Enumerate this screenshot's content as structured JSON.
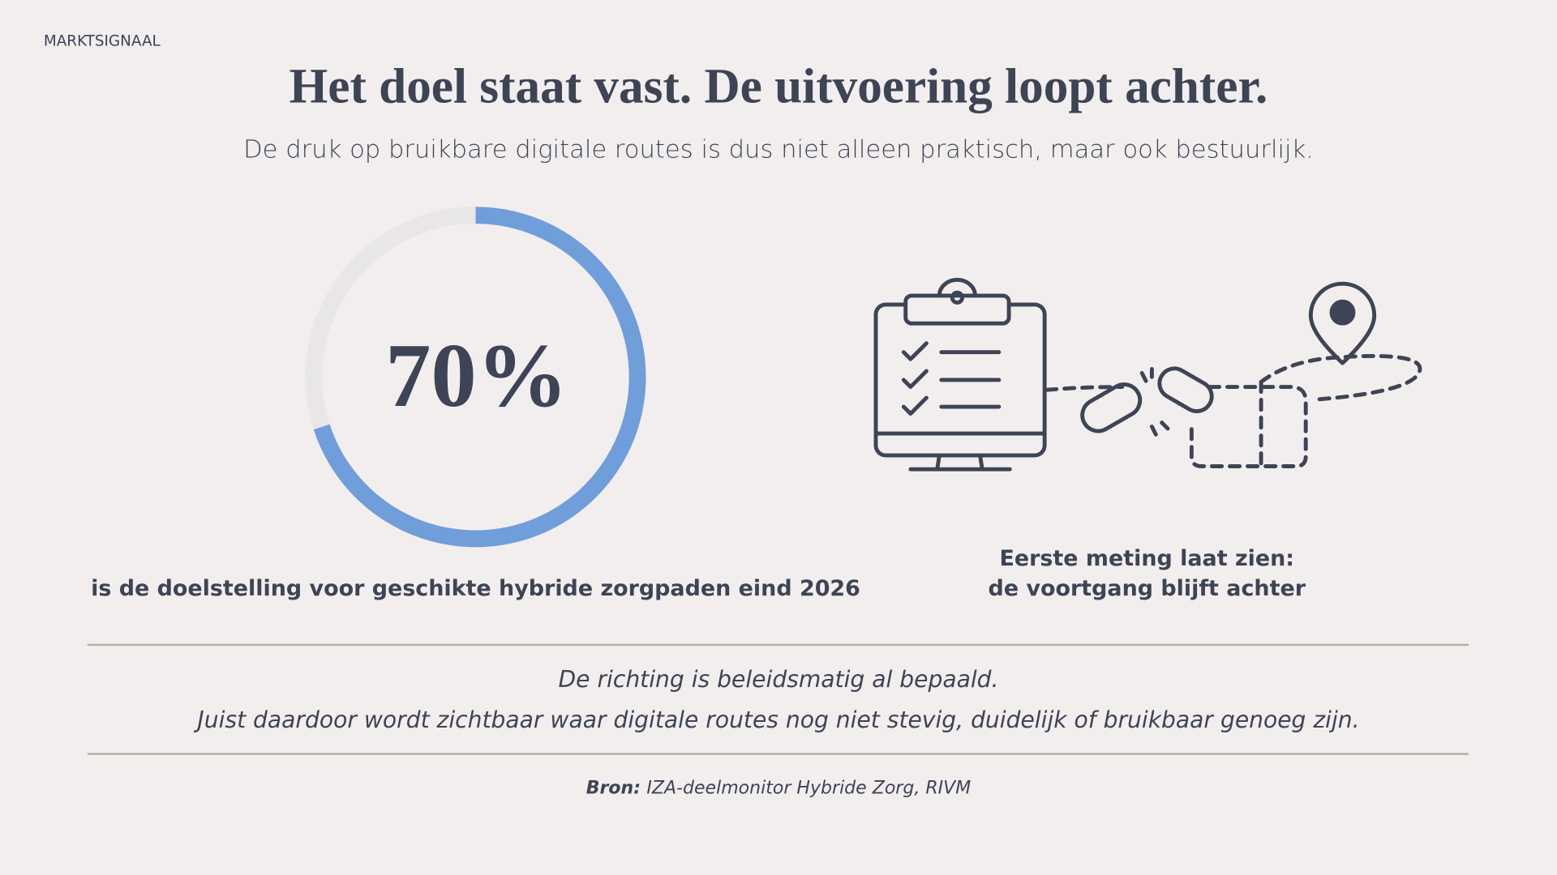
{
  "kicker": "MARKTSIGNAAL",
  "title": "Het doel staat vast. De uitvoering loopt achter.",
  "subtitle": "De druk op bruikbare digitale routes is dus niet alleen praktisch, maar ook bestuurlijk.",
  "chart_data": {
    "type": "gauge",
    "value": 70,
    "value_label": "70%",
    "ylim": [
      0,
      100
    ],
    "color": "#6f9edb",
    "track_color": "#e8e6e6",
    "caption": "is de doelstelling voor geschikte hybride zorgpaden eind 2026"
  },
  "measurement": {
    "lines": [
      "Eerste meting laat zien:",
      "de voortgang blijft achter"
    ]
  },
  "quote": {
    "lines": [
      "De richting is beleidsmatig al bepaald.",
      "Juist daardoor wordt zichtbaar waar digitale routes nog niet stevig, duidelijk of bruikbaar genoeg zijn."
    ]
  },
  "source": {
    "label": "Bron:",
    "text": "IZA-deelmonitor Hybride Zorg, RIVM"
  }
}
